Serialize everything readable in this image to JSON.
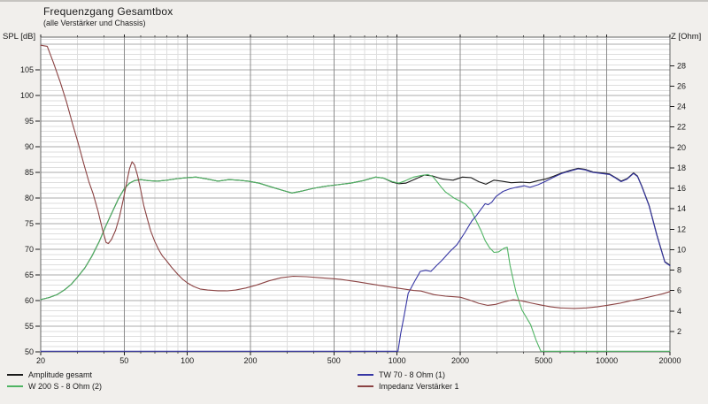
{
  "page": {
    "background": "#f1efec",
    "plot_background": "#ffffff"
  },
  "chart_data": {
    "type": "line",
    "title": "Frequenzgang Gesamtbox",
    "subtitle": "(alle Verstärker und Chassis)",
    "x_axis": {
      "scale": "log",
      "unit": "Hz",
      "min": 20,
      "max": 20000,
      "labeled_ticks": [
        20,
        50,
        100,
        200,
        500,
        1000,
        2000,
        5000,
        10000,
        20000
      ],
      "minor_ticks": [
        30,
        40,
        60,
        70,
        80,
        90,
        300,
        400,
        600,
        700,
        800,
        900,
        3000,
        4000,
        6000,
        7000,
        8000,
        9000
      ]
    },
    "y_left": {
      "label": "SPL [dB]",
      "min": 50,
      "max": 111.4,
      "labeled_ticks": [
        50,
        55,
        60,
        65,
        70,
        75,
        80,
        85,
        90,
        95,
        100,
        105
      ],
      "minor_step": 1,
      "major_step": 5
    },
    "y_right": {
      "label": "Z [Ohm]",
      "min": 0,
      "max": 30.8,
      "labeled_ticks": [
        2,
        4,
        6,
        8,
        10,
        12,
        14,
        16,
        18,
        20,
        22,
        24,
        26,
        28
      ]
    },
    "grid": {
      "minor_color": "#dedede",
      "major_h_color": "#ababab",
      "major_v_color": "#8c8c8c",
      "border_color": "#646464"
    },
    "legend": {
      "position": "bottom",
      "columns": 2
    },
    "series": [
      {
        "name": "Amplitude gesamt",
        "axis": "left",
        "color": "#1a1a1a",
        "points": [
          [
            20,
            60.2
          ],
          [
            22,
            60.6
          ],
          [
            24,
            61.2
          ],
          [
            26,
            62.1
          ],
          [
            28,
            63.2
          ],
          [
            30,
            64.6
          ],
          [
            32.5,
            66.4
          ],
          [
            35,
            68.6
          ],
          [
            38,
            71.5
          ],
          [
            41,
            74.7
          ],
          [
            44,
            77.4
          ],
          [
            47,
            79.9
          ],
          [
            50,
            81.8
          ],
          [
            53,
            82.9
          ],
          [
            56,
            83.4
          ],
          [
            60,
            83.6
          ],
          [
            65,
            83.4
          ],
          [
            72,
            83.3
          ],
          [
            80,
            83.5
          ],
          [
            90,
            83.8
          ],
          [
            100,
            84.0
          ],
          [
            110,
            84.1
          ],
          [
            125,
            83.7
          ],
          [
            140,
            83.3
          ],
          [
            158,
            83.6
          ],
          [
            175,
            83.5
          ],
          [
            195,
            83.3
          ],
          [
            220,
            82.9
          ],
          [
            250,
            82.2
          ],
          [
            285,
            81.5
          ],
          [
            315,
            81.0
          ],
          [
            355,
            81.4
          ],
          [
            400,
            81.9
          ],
          [
            455,
            82.3
          ],
          [
            520,
            82.6
          ],
          [
            600,
            82.9
          ],
          [
            690,
            83.4
          ],
          [
            790,
            84.1
          ],
          [
            860,
            83.9
          ],
          [
            950,
            83.1
          ],
          [
            1020,
            82.8
          ],
          [
            1100,
            82.9
          ],
          [
            1220,
            83.7
          ],
          [
            1350,
            84.5
          ],
          [
            1480,
            84.3
          ],
          [
            1650,
            83.7
          ],
          [
            1850,
            83.5
          ],
          [
            2050,
            84.1
          ],
          [
            2250,
            84.0
          ],
          [
            2450,
            83.2
          ],
          [
            2650,
            82.7
          ],
          [
            2900,
            83.5
          ],
          [
            3150,
            83.3
          ],
          [
            3500,
            83.0
          ],
          [
            3900,
            83.1
          ],
          [
            4300,
            83.0
          ],
          [
            4700,
            83.4
          ],
          [
            5100,
            83.7
          ],
          [
            5600,
            84.3
          ],
          [
            6100,
            84.9
          ],
          [
            6700,
            85.4
          ],
          [
            7300,
            85.8
          ],
          [
            7900,
            85.6
          ],
          [
            8600,
            85.1
          ],
          [
            9400,
            84.9
          ],
          [
            10300,
            84.7
          ],
          [
            11000,
            84.0
          ],
          [
            11700,
            83.3
          ],
          [
            12500,
            83.8
          ],
          [
            13400,
            84.9
          ],
          [
            14000,
            84.3
          ],
          [
            14700,
            82.3
          ],
          [
            15900,
            78.6
          ],
          [
            17300,
            72.9
          ],
          [
            18900,
            67.6
          ],
          [
            20000,
            66.9
          ]
        ]
      },
      {
        "name": "W 200 S - 8 Ohm (2)",
        "axis": "left",
        "color": "#4fb463",
        "points": [
          [
            20,
            60.2
          ],
          [
            22,
            60.6
          ],
          [
            24,
            61.2
          ],
          [
            26,
            62.1
          ],
          [
            28,
            63.2
          ],
          [
            30,
            64.6
          ],
          [
            32.5,
            66.4
          ],
          [
            35,
            68.6
          ],
          [
            38,
            71.5
          ],
          [
            41,
            74.7
          ],
          [
            44,
            77.4
          ],
          [
            47,
            79.9
          ],
          [
            50,
            81.8
          ],
          [
            53,
            82.9
          ],
          [
            56,
            83.4
          ],
          [
            60,
            83.6
          ],
          [
            65,
            83.4
          ],
          [
            72,
            83.3
          ],
          [
            80,
            83.5
          ],
          [
            90,
            83.8
          ],
          [
            100,
            84.0
          ],
          [
            110,
            84.1
          ],
          [
            125,
            83.7
          ],
          [
            140,
            83.3
          ],
          [
            158,
            83.6
          ],
          [
            175,
            83.5
          ],
          [
            195,
            83.3
          ],
          [
            220,
            82.9
          ],
          [
            250,
            82.2
          ],
          [
            285,
            81.5
          ],
          [
            315,
            81.0
          ],
          [
            355,
            81.4
          ],
          [
            400,
            81.9
          ],
          [
            455,
            82.3
          ],
          [
            520,
            82.6
          ],
          [
            600,
            82.9
          ],
          [
            690,
            83.4
          ],
          [
            790,
            84.1
          ],
          [
            860,
            83.9
          ],
          [
            950,
            83.2
          ],
          [
            1020,
            82.9
          ],
          [
            1100,
            83.4
          ],
          [
            1200,
            84.1
          ],
          [
            1300,
            84.4
          ],
          [
            1400,
            84.6
          ],
          [
            1480,
            84.2
          ],
          [
            1550,
            83.2
          ],
          [
            1620,
            82.2
          ],
          [
            1700,
            81.2
          ],
          [
            1870,
            80.0
          ],
          [
            2000,
            79.4
          ],
          [
            2120,
            78.8
          ],
          [
            2250,
            77.7
          ],
          [
            2390,
            75.5
          ],
          [
            2510,
            73.7
          ],
          [
            2630,
            71.7
          ],
          [
            2760,
            70.3
          ],
          [
            2900,
            69.4
          ],
          [
            3050,
            69.5
          ],
          [
            3225,
            70.2
          ],
          [
            3350,
            70.4
          ],
          [
            3460,
            66.8
          ],
          [
            3690,
            61.7
          ],
          [
            3935,
            58.2
          ],
          [
            4335,
            55.3
          ],
          [
            4600,
            52.3
          ],
          [
            4845,
            50
          ],
          [
            20000,
            50
          ]
        ]
      },
      {
        "name": "TW 70 - 8 Ohm (1)",
        "axis": "left",
        "color": "#3636a4",
        "points": [
          [
            20,
            50
          ],
          [
            1010,
            50
          ],
          [
            1040,
            53.5
          ],
          [
            1080,
            57.0
          ],
          [
            1130,
            61.4
          ],
          [
            1210,
            63.7
          ],
          [
            1290,
            65.7
          ],
          [
            1370,
            65.9
          ],
          [
            1450,
            65.7
          ],
          [
            1540,
            66.8
          ],
          [
            1650,
            68.0
          ],
          [
            1770,
            69.4
          ],
          [
            1930,
            70.9
          ],
          [
            2100,
            73.2
          ],
          [
            2270,
            75.5
          ],
          [
            2390,
            76.6
          ],
          [
            2510,
            77.8
          ],
          [
            2630,
            78.9
          ],
          [
            2720,
            78.7
          ],
          [
            2830,
            79.2
          ],
          [
            2960,
            80.3
          ],
          [
            3200,
            81.3
          ],
          [
            3450,
            81.8
          ],
          [
            3700,
            82.1
          ],
          [
            4050,
            82.4
          ],
          [
            4300,
            82.1
          ],
          [
            4700,
            82.6
          ],
          [
            5130,
            83.3
          ],
          [
            5600,
            84.1
          ],
          [
            6100,
            84.8
          ],
          [
            6700,
            85.3
          ],
          [
            7300,
            85.7
          ],
          [
            7900,
            85.5
          ],
          [
            8600,
            85.0
          ],
          [
            9400,
            84.8
          ],
          [
            10300,
            84.6
          ],
          [
            11000,
            83.9
          ],
          [
            11700,
            83.2
          ],
          [
            12500,
            83.7
          ],
          [
            13400,
            84.8
          ],
          [
            14000,
            84.2
          ],
          [
            14700,
            82.2
          ],
          [
            15900,
            78.5
          ],
          [
            17300,
            72.8
          ],
          [
            18900,
            67.5
          ],
          [
            20000,
            66.8
          ]
        ]
      },
      {
        "name": "Impedanz Verstärker 1",
        "axis": "right",
        "color": "#8b4343",
        "points": [
          [
            20,
            30.0
          ],
          [
            21.5,
            29.9
          ],
          [
            23,
            28.3
          ],
          [
            24.8,
            26.4
          ],
          [
            26.5,
            24.5
          ],
          [
            28.3,
            22.4
          ],
          [
            30.2,
            20.4
          ],
          [
            32.2,
            18.3
          ],
          [
            34,
            16.6
          ],
          [
            35.5,
            15.5
          ],
          [
            37.5,
            13.8
          ],
          [
            39.5,
            11.9
          ],
          [
            41,
            10.7
          ],
          [
            42,
            10.6
          ],
          [
            43.5,
            11.0
          ],
          [
            45.5,
            11.9
          ],
          [
            47.5,
            13.2
          ],
          [
            49.5,
            14.9
          ],
          [
            51.5,
            16.7
          ],
          [
            53,
            17.9
          ],
          [
            54.5,
            18.6
          ],
          [
            56,
            18.3
          ],
          [
            58,
            17.2
          ],
          [
            60,
            15.8
          ],
          [
            62,
            14.3
          ],
          [
            64.5,
            13.0
          ],
          [
            67,
            11.8
          ],
          [
            70,
            10.8
          ],
          [
            73,
            10.0
          ],
          [
            76,
            9.4
          ],
          [
            79,
            9.0
          ],
          [
            84,
            8.3
          ],
          [
            90,
            7.6
          ],
          [
            95,
            7.1
          ],
          [
            100,
            6.75
          ],
          [
            107,
            6.4
          ],
          [
            115,
            6.15
          ],
          [
            125,
            6.05
          ],
          [
            140,
            5.98
          ],
          [
            155,
            5.97
          ],
          [
            170,
            6.05
          ],
          [
            190,
            6.25
          ],
          [
            215,
            6.55
          ],
          [
            245,
            6.95
          ],
          [
            280,
            7.25
          ],
          [
            320,
            7.4
          ],
          [
            370,
            7.35
          ],
          [
            430,
            7.25
          ],
          [
            535,
            7.1
          ],
          [
            650,
            6.85
          ],
          [
            800,
            6.55
          ],
          [
            1000,
            6.25
          ],
          [
            1200,
            6.0
          ],
          [
            1300,
            5.95
          ],
          [
            1500,
            5.6
          ],
          [
            1700,
            5.45
          ],
          [
            2000,
            5.35
          ],
          [
            2200,
            5.1
          ],
          [
            2450,
            4.75
          ],
          [
            2700,
            4.55
          ],
          [
            2950,
            4.65
          ],
          [
            3250,
            4.9
          ],
          [
            3570,
            5.1
          ],
          [
            3900,
            5.0
          ],
          [
            4300,
            4.8
          ],
          [
            4800,
            4.6
          ],
          [
            5400,
            4.4
          ],
          [
            6000,
            4.3
          ],
          [
            7000,
            4.25
          ],
          [
            8000,
            4.3
          ],
          [
            9000,
            4.4
          ],
          [
            10000,
            4.55
          ],
          [
            11500,
            4.75
          ],
          [
            13000,
            5.0
          ],
          [
            15000,
            5.25
          ],
          [
            17000,
            5.5
          ],
          [
            18500,
            5.68
          ],
          [
            20000,
            5.9
          ]
        ]
      }
    ]
  }
}
